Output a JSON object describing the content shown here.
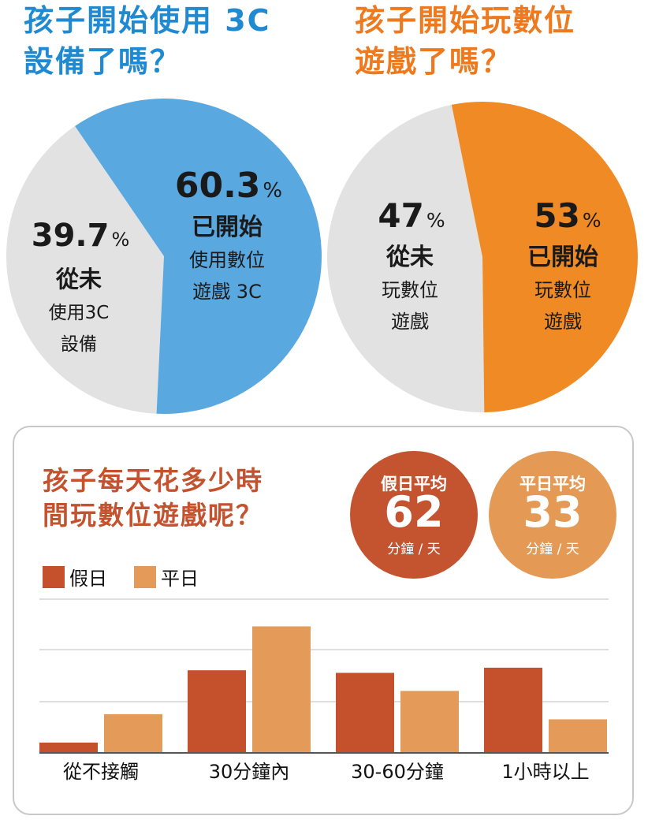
{
  "titles": {
    "left_line1": "孩子開始使用 3C",
    "left_line2": "設備了嗎？",
    "right_line1": "孩子開始玩數位",
    "right_line2": "遊戲了嗎？"
  },
  "pie_left": {
    "colors": {
      "started": "#5aa8e0",
      "never": "#e2e2e2"
    },
    "started": {
      "value": "60.3",
      "pct": "%",
      "label": "已開始",
      "sub1": "使用數位",
      "sub2": "遊戲 3C"
    },
    "never": {
      "value": "39.7",
      "pct": "%",
      "label": "從未",
      "sub1": "使用3C",
      "sub2": "設備"
    }
  },
  "pie_right": {
    "colors": {
      "started": "#f08a24",
      "never": "#e2e2e2"
    },
    "started": {
      "value": "53",
      "pct": "%",
      "label": "已開始",
      "sub1": "玩數位",
      "sub2": "遊戲"
    },
    "never": {
      "value": "47",
      "pct": "%",
      "label": "從未",
      "sub1": "玩數位",
      "sub2": "遊戲"
    }
  },
  "panel": {
    "title_line1": "孩子每天花多少時",
    "title_line2": "間玩數位遊戲呢？",
    "badges": {
      "holiday": {
        "label": "假日平均",
        "value": "62",
        "unit": "分鐘 / 天"
      },
      "weekday": {
        "label": "平日平均",
        "value": "33",
        "unit": "分鐘 / 天"
      }
    }
  },
  "chart_data": [
    {
      "type": "pie",
      "values": [
        60.3,
        39.7
      ],
      "labels": [
        "已開始",
        "從未"
      ],
      "colors": [
        "#5aa8e0",
        "#e2e2e2"
      ]
    },
    {
      "type": "pie",
      "values": [
        53,
        47
      ],
      "labels": [
        "已開始",
        "從未"
      ],
      "colors": [
        "#f08a24",
        "#e2e2e2"
      ]
    },
    {
      "type": "bar",
      "categories": [
        "從不接觸",
        "30分鐘內",
        "30-60分鐘",
        "1小時以上"
      ],
      "series": [
        {
          "name": "假日",
          "color": "#c4502c",
          "values": [
            4,
            32,
            31,
            33
          ]
        },
        {
          "name": "平日",
          "color": "#e49a58",
          "values": [
            15,
            49,
            24,
            13
          ]
        }
      ],
      "ylim": [
        0,
        60
      ],
      "grid": true,
      "legend": "top-left"
    }
  ]
}
